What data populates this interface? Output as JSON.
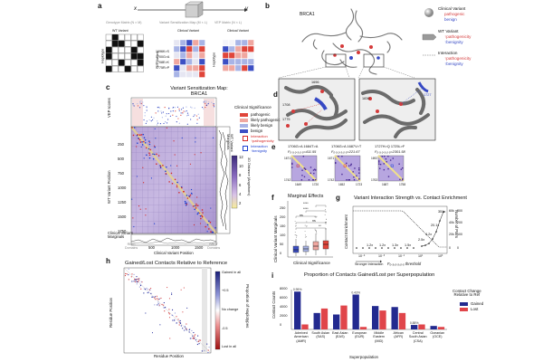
{
  "panel_labels": {
    "a": "a",
    "b": "b",
    "c": "c",
    "d": "d",
    "e": "e",
    "f": "f",
    "g": "g",
    "h": "h",
    "i": "i"
  },
  "panel_a": {
    "x_label": "x",
    "y_label": "y",
    "model_label": "ESM/\nmodel",
    "matrix1_title": "Genotype Matrix (N × M)",
    "matrix2_title": "Variant Sensitization Map (M × L)",
    "matrix3_title": "VEP Matrix (N × L)",
    "wt_variant": "WT Variant",
    "clinical_variant": "Clinical Variant",
    "haplotype_label": "Haplotype",
    "row_labels": [
      "1696K>S",
      "1700G>A",
      "1708E>K",
      "1775R>P",
      "1836Ter"
    ]
  },
  "panel_b": {
    "title": "BRCA1",
    "legend": [
      {
        "label": "Clinical Variant",
        "sub": [
          "pathogenic",
          "benign"
        ]
      },
      {
        "label": "WT Variant",
        "sub": [
          "↑pathogenicity",
          "↑benignity"
        ]
      },
      {
        "label": "Interaction",
        "sub": [
          "↑pathogenicity",
          "↑benignity"
        ]
      }
    ]
  },
  "panel_c": {
    "title": "Variant Sensitization Map:\nBRCA1",
    "vep_label": "VEP scores",
    "wt_marg_label": "WT Variant\nMarginals",
    "y_label": "WT Variant Position",
    "x_label": "Clinical Variant Position",
    "clin_marg_label": "Clinical Variant\nMarginals",
    "y_ticks": [
      "250",
      "500",
      "750",
      "1000",
      "1250",
      "1500",
      "1750"
    ],
    "x_ticks": [
      "500",
      "1000",
      "1500"
    ],
    "colorbar_label": "3D Distance (Angstroms)",
    "colorbar_ticks": [
      "12",
      "10",
      "8",
      "6",
      "4",
      "2"
    ],
    "domains": [
      "RING\nDomains",
      "BRCT\nDomains"
    ],
    "legend_title": "Clinical Significance",
    "legend": [
      {
        "label": "pathogenic",
        "color": "#e0453a"
      },
      {
        "label": "likely pathogenic",
        "color": "#f0a7a0"
      },
      {
        "label": "likely benign",
        "color": "#a8b4e6"
      },
      {
        "label": "benign",
        "color": "#3c4fc4"
      }
    ],
    "interaction_legend": [
      {
        "label": "Interaction\n↑pathogenicity",
        "color": "#d62828"
      },
      {
        "label": "Interaction\n↑benignity",
        "color": "#1d3fd1"
      }
    ]
  },
  "panel_d": {
    "labels_left": [
      "1708",
      "1775",
      "1696"
    ],
    "labels_right": [
      "1836",
      "1727"
    ]
  },
  "panel_e": {
    "items": [
      {
        "pair": "1706G>A  1684T>A",
        "f": "F₀.₅,₀.₅,₀.₅=411.55",
        "y": [
          "1671",
          "1742"
        ],
        "x": [
          "1649",
          "1720"
        ]
      },
      {
        "pair": "1706G>A  1687V>T",
        "f": "F₀.₅,₀.₅,₀.₅=221.67",
        "y": [
          "1671",
          "1742"
        ],
        "x": [
          "1652",
          "1723"
        ]
      },
      {
        "pair": "1727H>Q  1725L>F",
        "f": "F₀.₅,₀.₅,₀.₅=2301.58",
        "y": [
          "1692",
          "1763"
        ],
        "x": [
          "1687",
          "1758"
        ]
      }
    ]
  },
  "panel_f": {
    "title": "Marginal Effects",
    "y_label": "Clinical Variant Marginals",
    "x_label": "Clinical Significance",
    "sig_labels": [
      "****",
      "****",
      "ns",
      "ns",
      "**"
    ],
    "y_ticks": [
      "250",
      "200",
      "150",
      "100",
      "50",
      "0"
    ]
  },
  "panel_g": {
    "title": "Variant Interaction Strength vs. Contact Enrichment",
    "y_label": "Contact Enrichment",
    "y2_label": "Number of Pairs",
    "x_label": "F₀.₅,₀.₅,₀.₅ threshold",
    "x_caption": "Stronger interaction",
    "annotations": [
      "1.2x",
      "1.2x",
      "1.3x",
      "1.5x",
      "2.5x",
      "4.2x",
      "20.1x",
      "351x"
    ],
    "x_ticks": [
      "10⁻⁵",
      "10⁻³",
      "10⁻¹",
      "10¹",
      "10³"
    ],
    "y2_ticks": [
      "60k",
      "40k",
      "20k",
      "0"
    ],
    "y_ticks": [
      "300",
      "200",
      "100",
      "0"
    ]
  },
  "panel_h": {
    "title": "Gained/Lost Contacts Relative to Reference",
    "y_label": "Residue Position",
    "x_label": "Residue Position",
    "cbar_label": "Proportion of Haplotypes",
    "cbar_ticks": [
      "Gained in all",
      "+0.5",
      "No change",
      "-0.5",
      "Lost in all"
    ]
  },
  "panel_i": {
    "title": "Proportion of Contacts Gained/Lost per Superpopulation",
    "y_label": "Contact Counts",
    "x_label": "Superpopulation",
    "legend_title": "Contact Change\nRelative to Ref",
    "legend": [
      {
        "label": "Gained",
        "color": "#232a8f"
      },
      {
        "label": "Lost",
        "color": "#e0454a"
      }
    ],
    "y_ticks": [
      "8000",
      "6000",
      "4000",
      "2000",
      "0"
    ]
  },
  "chart_data": {
    "type": "bar",
    "title": "Proportion of Contacts Gained/Lost per Superpopulation",
    "xlabel": "Superpopulation",
    "ylabel": "Contact Counts",
    "ylim": [
      0,
      8000
    ],
    "categories": [
      "Admixed American (AMR)",
      "South Asian (SAS)",
      "East Asian (EAS)",
      "European (EUR)",
      "Middle Eastern (MID)",
      "African (AFR)",
      "Central South Asian (CSA)",
      "Oceanian (OCE)"
    ],
    "series": [
      {
        "name": "Gained",
        "color": "#232a8f",
        "values": [
          7600,
          3300,
          3000,
          7000,
          4700,
          4500,
          900,
          700
        ],
        "labels": [
          "0.95%",
          "",
          "",
          "0.43%",
          "",
          "",
          "0.88%",
          ""
        ]
      },
      {
        "name": "Lost",
        "color": "#e0454a",
        "values": [
          1000,
          4200,
          4800,
          500,
          3800,
          3300,
          1000,
          500
        ],
        "labels": [
          "",
          "",
          "",
          "",
          "",
          "",
          "",
          ""
        ]
      }
    ]
  }
}
